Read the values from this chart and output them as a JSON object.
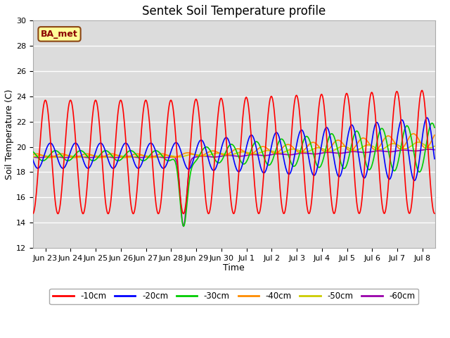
{
  "title": "Sentek Soil Temperature profile",
  "xlabel": "Time",
  "ylabel": "Soil Temperature (C)",
  "ylim": [
    12,
    30
  ],
  "annotation_text": "BA_met",
  "annotation_box_color": "#FFFF99",
  "annotation_border_color": "#8B4513",
  "background_color": "#DCDCDC",
  "grid_color": "#FFFFFF",
  "legend_labels": [
    "-10cm",
    "-20cm",
    "-30cm",
    "-40cm",
    "-50cm",
    "-60cm"
  ],
  "line_colors": [
    "#FF0000",
    "#0000FF",
    "#00CC00",
    "#FF8C00",
    "#CCCC00",
    "#9900AA"
  ],
  "line_widths": [
    1.2,
    1.2,
    1.2,
    1.2,
    1.2,
    1.2
  ],
  "title_fontsize": 12,
  "axis_fontsize": 9,
  "tick_fontsize": 8
}
